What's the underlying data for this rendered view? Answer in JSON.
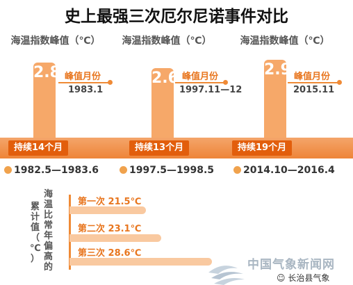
{
  "title": "史上最强三次厄尔尼诺事件对比",
  "peak_header": "海温指数峰值（℃）",
  "peak_month_label": "峰值月份",
  "cumulative_label": "海温比常年偏高的累计值（℃）",
  "events": [
    {
      "peak_value": "2.8",
      "peak_month": "1983.1",
      "duration": "持续14个月",
      "period": "1982.5—1983.6",
      "cum_label": "第一次 21.5℃"
    },
    {
      "peak_value": "2.6",
      "peak_month": "1997.11—12",
      "duration": "持续13个月",
      "period": "1997.5—1998.5",
      "cum_label": "第二次 23.1℃"
    },
    {
      "peak_value": "2.9",
      "peak_month": "2015.11",
      "duration": "持续19个月",
      "period": "2014.10—2016.4",
      "cum_label": "第三次 28.6℃"
    }
  ],
  "watermark": {
    "site": "中国气象新闻网",
    "account": "长治县气象"
  },
  "colors": {
    "accent": "#ef8a36",
    "bar": "#f6a869",
    "dark_accent": "#e25e0c",
    "light_bar": "#f9c9a0"
  },
  "chart_data": [
    {
      "type": "bar",
      "categories": [
        "1982.5—1983.6",
        "1997.5—1998.5",
        "2014.10—2016.4"
      ],
      "values": [
        2.8,
        2.6,
        2.9
      ],
      "ylabel": "海温指数峰值（℃）",
      "peak_months": [
        "1983.1",
        "1997.11—12",
        "2015.11"
      ]
    },
    {
      "type": "bar",
      "categories": [
        "第一次",
        "第二次",
        "第三次"
      ],
      "values": [
        21.5,
        23.1,
        28.6
      ],
      "ylabel": "海温比常年偏高的累计值（℃）",
      "durations_months": [
        14,
        13,
        19
      ]
    }
  ]
}
